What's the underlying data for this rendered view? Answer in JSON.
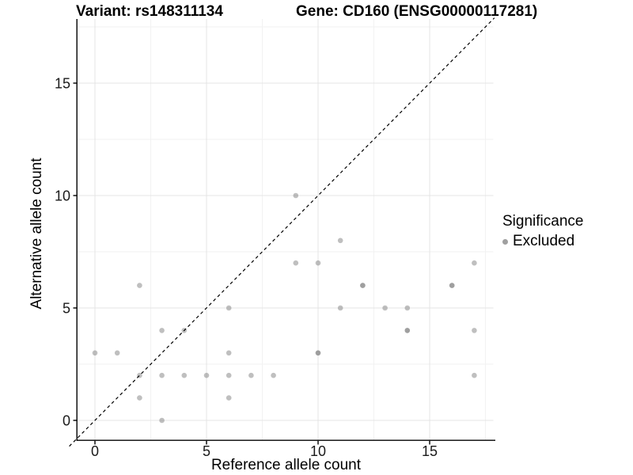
{
  "header": {
    "variant_title": "Variant: rs148311134",
    "gene_title": "Gene: CD160 (ENSG00000117281)"
  },
  "chart_data": {
    "type": "scatter",
    "xlabel": "Reference allele count",
    "ylabel": "Alternative allele count",
    "x_ticks": [
      0,
      5,
      10,
      15
    ],
    "y_ticks": [
      0,
      5,
      10,
      15
    ],
    "x_minor_gridlines": [
      2.5,
      7.5,
      12.5,
      17.5
    ],
    "y_minor_gridlines": [
      2.5,
      7.5,
      12.5,
      17.5
    ],
    "xlim": [
      -0.85,
      17.85
    ],
    "ylim": [
      -0.85,
      17.85
    ],
    "grid": "on",
    "legend_position": "right",
    "identity_line": {
      "type": "dashed",
      "slope": 1,
      "intercept": 0,
      "color": "#000000"
    },
    "points_note": "each entry is [reference_allele_count, alternative_allele_count, n_overlapping_points]",
    "points": [
      [
        0,
        3,
        1
      ],
      [
        1,
        3,
        1
      ],
      [
        2,
        1,
        1
      ],
      [
        2,
        2,
        1
      ],
      [
        2,
        6,
        1
      ],
      [
        3,
        0,
        1
      ],
      [
        3,
        2,
        1
      ],
      [
        3,
        4,
        1
      ],
      [
        4,
        2,
        1
      ],
      [
        4,
        4,
        1
      ],
      [
        5,
        2,
        1
      ],
      [
        6,
        1,
        1
      ],
      [
        6,
        2,
        1
      ],
      [
        6,
        3,
        1
      ],
      [
        6,
        5,
        1
      ],
      [
        7,
        2,
        1
      ],
      [
        8,
        2,
        1
      ],
      [
        9,
        7,
        1
      ],
      [
        9,
        10,
        1
      ],
      [
        10,
        3,
        2
      ],
      [
        10,
        7,
        1
      ],
      [
        11,
        5,
        1
      ],
      [
        11,
        8,
        1
      ],
      [
        12,
        6,
        2
      ],
      [
        13,
        5,
        1
      ],
      [
        14,
        4,
        2
      ],
      [
        14,
        5,
        1
      ],
      [
        16,
        6,
        2
      ],
      [
        17,
        2,
        1
      ],
      [
        17,
        4,
        1
      ],
      [
        17,
        7,
        1
      ]
    ],
    "point_color": "#7f7f7f",
    "point_opacity": 0.5,
    "grid_major_color": "#e4e4e4",
    "grid_minor_color": "#f2f2f2",
    "axis_color": "#000000",
    "tick_label_color": "#1a1a1a",
    "legend": {
      "title": "Significance",
      "items": [
        {
          "label": "Excluded",
          "color": "#a0a0a0"
        }
      ]
    }
  }
}
